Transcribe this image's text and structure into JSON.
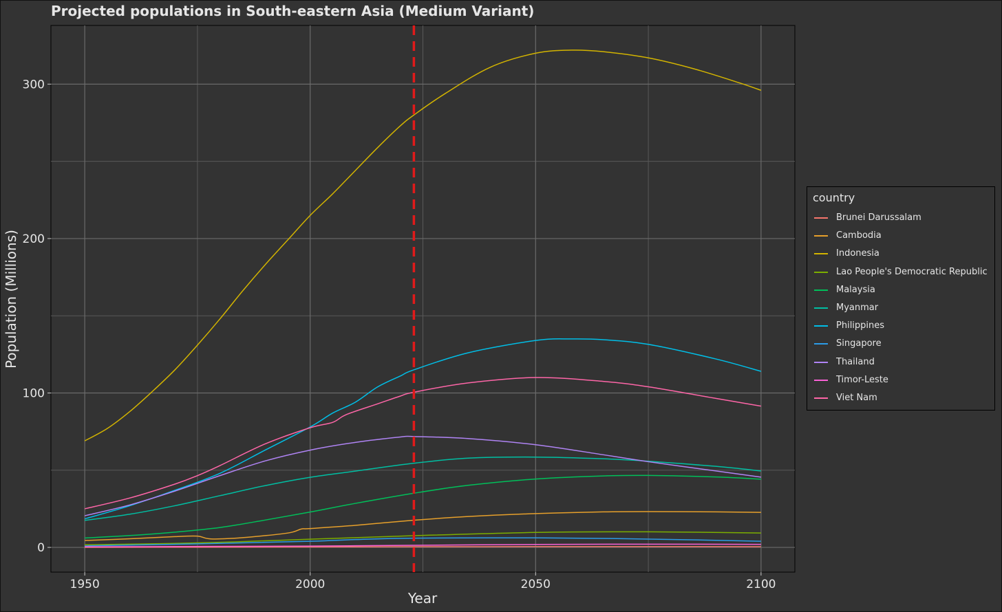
{
  "chart_data": {
    "type": "line",
    "title": "Projected populations in South-eastern Asia (Medium Variant)",
    "xlabel": "Year",
    "ylabel": "Population (Millions)",
    "xlim": [
      1942.5,
      2107.5
    ],
    "ylim": [
      -16,
      338
    ],
    "x_ticks": [
      1950,
      2000,
      2050,
      2100
    ],
    "y_ticks": [
      0,
      100,
      200,
      300
    ],
    "grid": true,
    "reference_line": {
      "x": 2023,
      "color": "#e01a1a",
      "style": "dashed"
    },
    "legend": {
      "title": "country",
      "position": "right"
    },
    "series": [
      {
        "name": "Brunei Darussalam",
        "color": "#f8766d",
        "x": [
          1950,
          1975,
          2000,
          2023,
          2050,
          2075,
          2100
        ],
        "y": [
          0.05,
          0.16,
          0.33,
          0.45,
          0.52,
          0.52,
          0.48
        ]
      },
      {
        "name": "Cambodia",
        "color": "#e7a02b",
        "x": [
          1950,
          1960,
          1970,
          1975,
          1978,
          1985,
          1995,
          1998,
          2000,
          2010,
          2023,
          2035,
          2050,
          2065,
          2075,
          2090,
          2100
        ],
        "y": [
          4.5,
          5.6,
          7.0,
          7.3,
          5.5,
          6.3,
          9.3,
          11.9,
          12.2,
          14.3,
          17.6,
          20.0,
          21.9,
          23.0,
          23.2,
          23.0,
          22.7
        ]
      },
      {
        "name": "Indonesia",
        "color": "#d3b400",
        "x": [
          1950,
          1955,
          1960,
          1965,
          1970,
          1975,
          1980,
          1985,
          1990,
          1995,
          2000,
          2005,
          2010,
          2015,
          2020,
          2023,
          2030,
          2040,
          2050,
          2058,
          2065,
          2075,
          2085,
          2095,
          2100
        ],
        "y": [
          69,
          77,
          88,
          101,
          115,
          131,
          148,
          166,
          183,
          199,
          215,
          229,
          244,
          259,
          273,
          280,
          294,
          311,
          320,
          322,
          321,
          317,
          310,
          301,
          296
        ]
      },
      {
        "name": "Lao People's Democratic Republic",
        "color": "#7cae00",
        "x": [
          1950,
          1975,
          2000,
          2023,
          2050,
          2075,
          2100
        ],
        "y": [
          1.7,
          2.9,
          5.3,
          7.6,
          9.7,
          10.1,
          9.3
        ]
      },
      {
        "name": "Malaysia",
        "color": "#00c05a",
        "x": [
          1950,
          1960,
          1970,
          1980,
          1990,
          2000,
          2010,
          2023,
          2035,
          2050,
          2065,
          2075,
          2090,
          2100
        ],
        "y": [
          6.1,
          7.7,
          9.9,
          12.9,
          17.7,
          22.9,
          28.5,
          35.1,
          40.2,
          44.3,
          46.3,
          46.6,
          45.6,
          44.2
        ]
      },
      {
        "name": "Myanmar",
        "color": "#00bfa3",
        "x": [
          1950,
          1960,
          1970,
          1980,
          1990,
          2000,
          2010,
          2023,
          2035,
          2050,
          2065,
          2075,
          2090,
          2100
        ],
        "y": [
          17.5,
          21.5,
          27.0,
          33.5,
          40.0,
          45.4,
          49.4,
          54.5,
          57.8,
          58.5,
          57.4,
          55.8,
          52.5,
          49.5
        ]
      },
      {
        "name": "Philippines",
        "color": "#00bfe8",
        "x": [
          1950,
          1960,
          1970,
          1980,
          1990,
          2000,
          2005,
          2010,
          2015,
          2020,
          2023,
          2035,
          2050,
          2058,
          2065,
          2075,
          2090,
          2100
        ],
        "y": [
          18.5,
          27.0,
          37.0,
          48.0,
          63.0,
          78.0,
          87.0,
          94.0,
          104.0,
          111.0,
          115.0,
          126.0,
          134.0,
          135.0,
          134.5,
          131.5,
          122.0,
          114.0
        ]
      },
      {
        "name": "Singapore",
        "color": "#2b9ce8",
        "x": [
          1950,
          1975,
          2000,
          2010,
          2023,
          2050,
          2075,
          2100
        ],
        "y": [
          1.0,
          2.3,
          4.0,
          5.1,
          6.0,
          6.2,
          5.4,
          4.0
        ]
      },
      {
        "name": "Thailand",
        "color": "#b084f5",
        "x": [
          1950,
          1960,
          1970,
          1980,
          1990,
          2000,
          2010,
          2020,
          2023,
          2035,
          2050,
          2065,
          2075,
          2090,
          2100
        ],
        "y": [
          20.5,
          27.5,
          36.5,
          46.5,
          56.0,
          63.0,
          68.0,
          71.5,
          71.8,
          70.5,
          66.5,
          60.0,
          55.5,
          49.5,
          45.5
        ]
      },
      {
        "name": "Timor-Leste",
        "color": "#fb61d7",
        "x": [
          1950,
          1975,
          2000,
          2023,
          2050,
          2075,
          2100
        ],
        "y": [
          0.43,
          0.63,
          0.87,
          1.36,
          1.9,
          2.1,
          2.0
        ]
      },
      {
        "name": "Viet Nam",
        "color": "#ff66a8",
        "x": [
          1950,
          1960,
          1970,
          1975,
          1980,
          1990,
          2000,
          2005,
          2008,
          2015,
          2020,
          2023,
          2035,
          2050,
          2065,
          2075,
          2090,
          2100
        ],
        "y": [
          25.0,
          32.0,
          41.0,
          46.5,
          53.0,
          67.0,
          77.5,
          81.0,
          86.0,
          93.0,
          98.0,
          100.5,
          106.5,
          110.0,
          107.5,
          104.0,
          96.5,
          91.5
        ]
      }
    ]
  }
}
